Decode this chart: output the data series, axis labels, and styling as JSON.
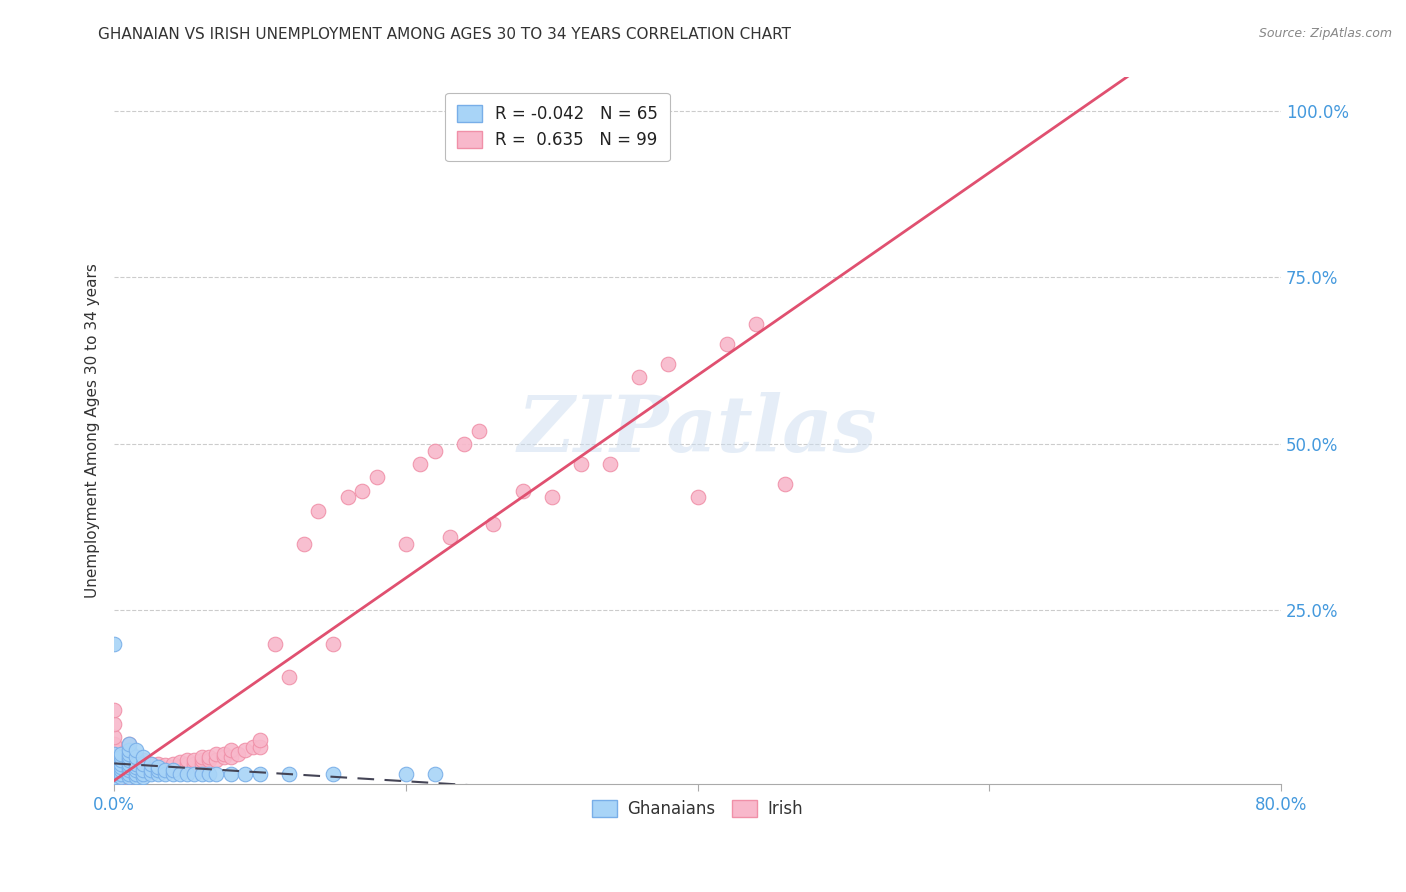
{
  "title": "GHANAIAN VS IRISH UNEMPLOYMENT AMONG AGES 30 TO 34 YEARS CORRELATION CHART",
  "source": "Source: ZipAtlas.com",
  "ylabel": "Unemployment Among Ages 30 to 34 years",
  "xlim": [
    0.0,
    0.8
  ],
  "ylim": [
    -0.01,
    1.05
  ],
  "xtick_labels": [
    "0.0%",
    "",
    "",
    "",
    "80.0%"
  ],
  "xtick_vals": [
    0.0,
    0.2,
    0.4,
    0.6,
    0.8
  ],
  "ytick_labels": [
    "25.0%",
    "50.0%",
    "75.0%",
    "100.0%"
  ],
  "ytick_vals": [
    0.25,
    0.5,
    0.75,
    1.0
  ],
  "ghanaian_color": "#a8d4f7",
  "irish_color": "#f8b8cb",
  "ghanaian_edge": "#78aee8",
  "irish_edge": "#f090a8",
  "trend_ghanaian_color": "#444455",
  "trend_irish_color": "#e05070",
  "R_ghanaian": -0.042,
  "N_ghanaian": 65,
  "R_irish": 0.635,
  "N_irish": 99,
  "watermark": "ZIPatlas",
  "background_color": "#ffffff",
  "grid_color": "#cccccc",
  "title_color": "#333333",
  "axis_label_color": "#333333",
  "right_tick_color": "#4499dd",
  "bottom_tick_color": "#4499dd",
  "legend_R_color": "#cc2244",
  "legend_N_color": "#3366bb",
  "ghanaian_x": [
    0.0,
    0.0,
    0.0,
    0.0,
    0.0,
    0.0,
    0.0,
    0.0,
    0.0,
    0.0,
    0.0,
    0.0,
    0.005,
    0.005,
    0.005,
    0.005,
    0.005,
    0.005,
    0.005,
    0.005,
    0.01,
    0.01,
    0.01,
    0.01,
    0.01,
    0.01,
    0.01,
    0.01,
    0.01,
    0.01,
    0.015,
    0.015,
    0.015,
    0.015,
    0.015,
    0.015,
    0.015,
    0.02,
    0.02,
    0.02,
    0.02,
    0.02,
    0.025,
    0.025,
    0.025,
    0.03,
    0.03,
    0.03,
    0.035,
    0.035,
    0.04,
    0.04,
    0.045,
    0.05,
    0.055,
    0.06,
    0.065,
    0.07,
    0.08,
    0.09,
    0.1,
    0.12,
    0.15,
    0.2,
    0.22
  ],
  "ghanaian_y": [
    0.0,
    0.0,
    0.005,
    0.005,
    0.01,
    0.01,
    0.015,
    0.02,
    0.025,
    0.03,
    0.035,
    0.2,
    0.0,
    0.005,
    0.01,
    0.015,
    0.02,
    0.025,
    0.03,
    0.035,
    0.0,
    0.005,
    0.01,
    0.015,
    0.02,
    0.025,
    0.03,
    0.035,
    0.04,
    0.05,
    0.0,
    0.005,
    0.01,
    0.015,
    0.02,
    0.03,
    0.04,
    0.0,
    0.005,
    0.01,
    0.02,
    0.03,
    0.005,
    0.01,
    0.02,
    0.005,
    0.01,
    0.015,
    0.005,
    0.01,
    0.005,
    0.01,
    0.005,
    0.005,
    0.005,
    0.005,
    0.005,
    0.005,
    0.005,
    0.005,
    0.005,
    0.005,
    0.005,
    0.005,
    0.005
  ],
  "irish_x": [
    0.0,
    0.0,
    0.0,
    0.0,
    0.0,
    0.0,
    0.0,
    0.0,
    0.0,
    0.0,
    0.0,
    0.0,
    0.0,
    0.005,
    0.005,
    0.005,
    0.005,
    0.005,
    0.005,
    0.005,
    0.01,
    0.01,
    0.01,
    0.01,
    0.01,
    0.01,
    0.01,
    0.01,
    0.01,
    0.01,
    0.015,
    0.015,
    0.015,
    0.015,
    0.015,
    0.015,
    0.02,
    0.02,
    0.02,
    0.02,
    0.02,
    0.025,
    0.025,
    0.025,
    0.03,
    0.03,
    0.03,
    0.035,
    0.035,
    0.04,
    0.04,
    0.045,
    0.045,
    0.05,
    0.05,
    0.05,
    0.055,
    0.055,
    0.06,
    0.06,
    0.06,
    0.065,
    0.065,
    0.07,
    0.07,
    0.075,
    0.075,
    0.08,
    0.08,
    0.085,
    0.09,
    0.095,
    0.1,
    0.1,
    0.11,
    0.12,
    0.13,
    0.14,
    0.15,
    0.16,
    0.17,
    0.18,
    0.2,
    0.21,
    0.22,
    0.23,
    0.24,
    0.25,
    0.26,
    0.28,
    0.3,
    0.32,
    0.34,
    0.36,
    0.38,
    0.4,
    0.42,
    0.44,
    0.46
  ],
  "irish_y": [
    0.0,
    0.005,
    0.01,
    0.015,
    0.02,
    0.025,
    0.03,
    0.035,
    0.04,
    0.05,
    0.06,
    0.08,
    0.1,
    0.0,
    0.005,
    0.01,
    0.015,
    0.02,
    0.025,
    0.03,
    0.0,
    0.005,
    0.01,
    0.015,
    0.02,
    0.025,
    0.03,
    0.035,
    0.04,
    0.05,
    0.005,
    0.01,
    0.015,
    0.02,
    0.025,
    0.03,
    0.005,
    0.01,
    0.015,
    0.02,
    0.025,
    0.008,
    0.015,
    0.02,
    0.01,
    0.015,
    0.02,
    0.012,
    0.018,
    0.015,
    0.02,
    0.015,
    0.022,
    0.015,
    0.02,
    0.025,
    0.02,
    0.025,
    0.02,
    0.025,
    0.03,
    0.025,
    0.03,
    0.025,
    0.035,
    0.03,
    0.035,
    0.03,
    0.04,
    0.035,
    0.04,
    0.045,
    0.045,
    0.055,
    0.2,
    0.15,
    0.35,
    0.4,
    0.2,
    0.42,
    0.43,
    0.45,
    0.35,
    0.47,
    0.49,
    0.36,
    0.5,
    0.52,
    0.38,
    0.43,
    0.42,
    0.47,
    0.47,
    0.6,
    0.62,
    0.42,
    0.65,
    0.68,
    0.44
  ]
}
